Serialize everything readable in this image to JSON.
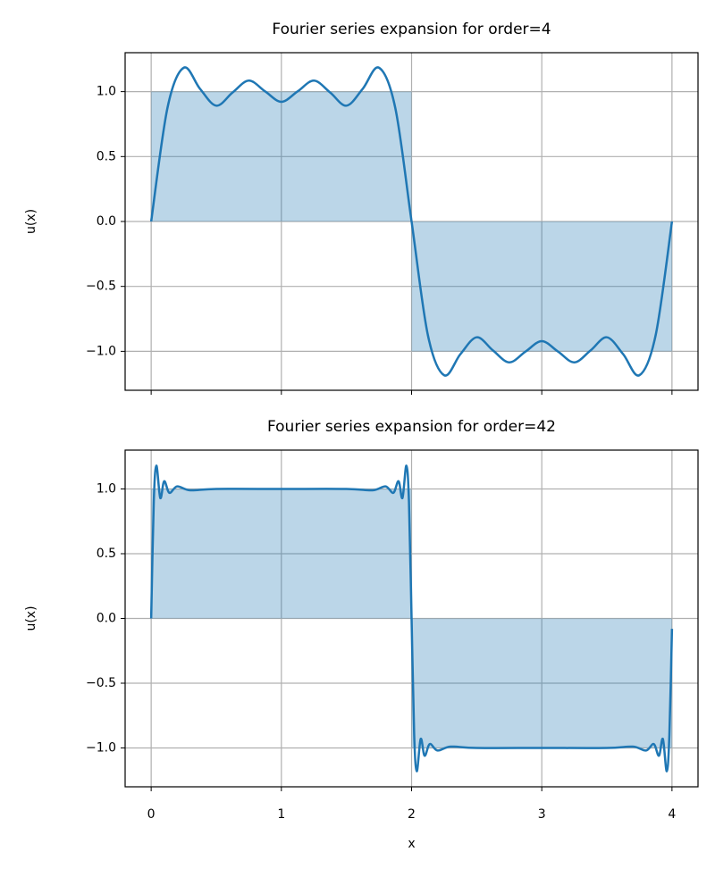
{
  "chart_data": [
    {
      "type": "line",
      "title": "Fourier series expansion for order=4",
      "ylabel": "u(x)",
      "xlim": [
        -0.2,
        4.2
      ],
      "ylim": [
        -1.3,
        1.3
      ],
      "xticks": [
        0,
        1,
        2,
        3,
        4
      ],
      "x_tick_labels": false,
      "yticks": [
        {
          "value": 1,
          "label": "1.0"
        },
        {
          "value": 0.5,
          "label": "0.5"
        },
        {
          "value": 0,
          "label": "0.0"
        },
        {
          "value": -0.5,
          "label": "−0.5"
        },
        {
          "value": -1,
          "label": "−1.0"
        }
      ],
      "grid": true,
      "area": {
        "x": [
          0,
          2,
          2,
          4
        ],
        "values": [
          1,
          1,
          -1,
          -1
        ],
        "color": "#1f77b4",
        "opacity": 0.3
      },
      "x": [
        0,
        0.125,
        0.25,
        0.375,
        0.5,
        0.625,
        0.75,
        0.875,
        1,
        1.125,
        1.25,
        1.375,
        1.5,
        1.625,
        1.75,
        1.875,
        2,
        2.125,
        2.25,
        2.375,
        2.5,
        2.625,
        2.75,
        2.875,
        3,
        3.125,
        3.25,
        3.375,
        3.5,
        3.625,
        3.75,
        3.875,
        4
      ],
      "series": [
        {
          "color": "#1f77b4",
          "values": [
            0,
            0.874,
            1.184,
            1.022,
            0.892,
            0.993,
            1.085,
            1.002,
            0.922,
            1.002,
            1.085,
            0.993,
            0.892,
            1.022,
            1.184,
            0.874,
            0,
            -0.874,
            -1.184,
            -1.022,
            -0.892,
            -0.993,
            -1.085,
            -1.002,
            -0.922,
            -1.002,
            -1.085,
            -0.993,
            -0.892,
            -1.022,
            -1.184,
            -0.874,
            0
          ]
        }
      ]
    },
    {
      "type": "line",
      "title": "Fourier series expansion for order=42",
      "ylabel": "u(x)",
      "xlabel": "x",
      "xlim": [
        -0.2,
        4.2
      ],
      "ylim": [
        -1.3,
        1.3
      ],
      "xticks": [
        0,
        1,
        2,
        3,
        4
      ],
      "x_tick_labels": true,
      "yticks": [
        {
          "value": 1,
          "label": "1.0"
        },
        {
          "value": 0.5,
          "label": "0.5"
        },
        {
          "value": 0,
          "label": "0.0"
        },
        {
          "value": -0.5,
          "label": "−0.5"
        },
        {
          "value": -1,
          "label": "−1.0"
        }
      ],
      "grid": true,
      "area": {
        "x": [
          0,
          2,
          2,
          4
        ],
        "values": [
          1,
          1,
          -1,
          -1
        ],
        "color": "#1f77b4",
        "opacity": 0.3
      },
      "x": [
        0,
        0.02,
        0.04,
        0.07,
        0.1,
        0.14,
        0.2,
        0.3,
        0.5,
        1,
        1.5,
        1.7,
        1.8,
        1.86,
        1.9,
        1.93,
        1.96,
        1.98,
        2,
        2.02,
        2.04,
        2.07,
        2.1,
        2.14,
        2.2,
        2.3,
        2.5,
        3,
        3.5,
        3.7,
        3.8,
        3.86,
        3.9,
        3.93,
        3.96,
        3.98,
        4
      ],
      "series": [
        {
          "color": "#1f77b4",
          "values": [
            0,
            0.9,
            1.18,
            0.93,
            1.06,
            0.97,
            1.02,
            0.99,
            1,
            1,
            1,
            0.99,
            1.02,
            0.97,
            1.06,
            0.93,
            1.18,
            0.9,
            0,
            -0.9,
            -1.18,
            -0.93,
            -1.06,
            -0.97,
            -1.02,
            -0.99,
            -1,
            -1,
            -1,
            -0.99,
            -1.02,
            -0.97,
            -1.06,
            -0.93,
            -1.18,
            -0.9,
            -0.08
          ]
        }
      ]
    }
  ]
}
